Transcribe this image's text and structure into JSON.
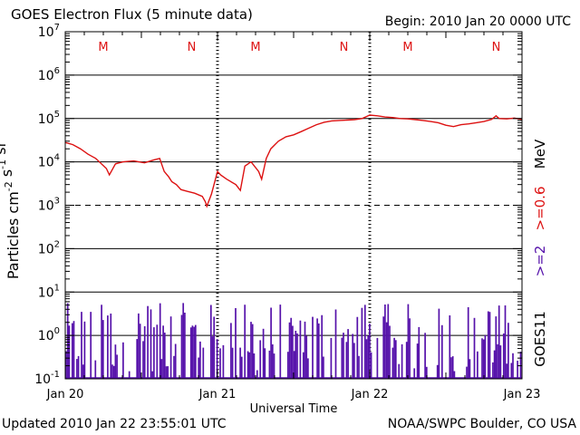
{
  "header": {
    "title": "GOES Electron Flux (5 minute data)",
    "begin": "Begin: 2010 Jan 20 0000 UTC"
  },
  "footer": {
    "updated": "Updated 2010 Jan 22 23:55:01 UTC",
    "credit": "NOAA/SWPC Boulder, CO USA"
  },
  "colors": {
    "high_energy": "#dd1111",
    "low_energy": "#5511aa",
    "axis": "#000000"
  },
  "chart_data": {
    "type": "line",
    "xlabel": "Universal Time",
    "ylabel": "Particles cm^-2 s^-1 sr^-1",
    "x_ticks": [
      "Jan 20",
      "Jan 21",
      "Jan 22",
      "Jan 23"
    ],
    "x_range_days": [
      0,
      3
    ],
    "y_scale": "log",
    "ylim": [
      0.1,
      10000000
    ],
    "y_ticks": [
      "10^-1",
      "10^0",
      "10^1",
      "10^2",
      "10^3",
      "10^4",
      "10^5",
      "10^6",
      "10^7"
    ],
    "threshold_line": 1000,
    "right_labels": {
      "satellite": "GOES11",
      "low": ">=2",
      "high": ">=0.6",
      "unit": "MeV"
    },
    "day_markers": [
      "M",
      "N",
      "M",
      "N",
      "M",
      "N"
    ],
    "day_marker_x_days": [
      0.25,
      0.83,
      1.25,
      1.83,
      2.25,
      2.83
    ],
    "series": [
      {
        "name": ">=0.6 MeV",
        "color": "#dd1111",
        "x_days": [
          0,
          0.05,
          0.1,
          0.15,
          0.2,
          0.27,
          0.29,
          0.33,
          0.38,
          0.45,
          0.52,
          0.58,
          0.62,
          0.65,
          0.68,
          0.7,
          0.73,
          0.76,
          0.8,
          0.85,
          0.9,
          0.92,
          0.93,
          0.96,
          1.0,
          1.02,
          1.06,
          1.12,
          1.15,
          1.18,
          1.22,
          1.27,
          1.29,
          1.32,
          1.35,
          1.4,
          1.45,
          1.5,
          1.55,
          1.6,
          1.65,
          1.7,
          1.75,
          1.8,
          1.85,
          1.9,
          1.95,
          2.0,
          2.05,
          2.1,
          2.15,
          2.2,
          2.25,
          2.3,
          2.35,
          2.4,
          2.45,
          2.5,
          2.55,
          2.6,
          2.65,
          2.7,
          2.75,
          2.8,
          2.83,
          2.85,
          2.9,
          2.95,
          3.0
        ],
        "values": [
          28000,
          25000,
          20000,
          15000,
          12000,
          7000,
          5000,
          9000,
          10000,
          10500,
          9500,
          11000,
          12000,
          6000,
          4500,
          3500,
          3000,
          2300,
          2100,
          1900,
          1600,
          1200,
          950,
          1800,
          6000,
          5000,
          4000,
          3000,
          2200,
          8000,
          10000,
          6000,
          4000,
          12000,
          20000,
          30000,
          38000,
          42000,
          50000,
          60000,
          72000,
          82000,
          88000,
          90000,
          92000,
          94000,
          100000,
          120000,
          115000,
          108000,
          105000,
          100000,
          98000,
          94000,
          90000,
          85000,
          80000,
          70000,
          65000,
          72000,
          75000,
          80000,
          85000,
          95000,
          115000,
          100000,
          98000,
          102000,
          95000
        ]
      },
      {
        "name": ">=2 MeV",
        "color": "#5511aa",
        "note": "fluctuating near 1 with frequent drops to the floor",
        "baseline": 1,
        "min": 0.1,
        "max": 6,
        "floor": 0.1
      }
    ]
  }
}
